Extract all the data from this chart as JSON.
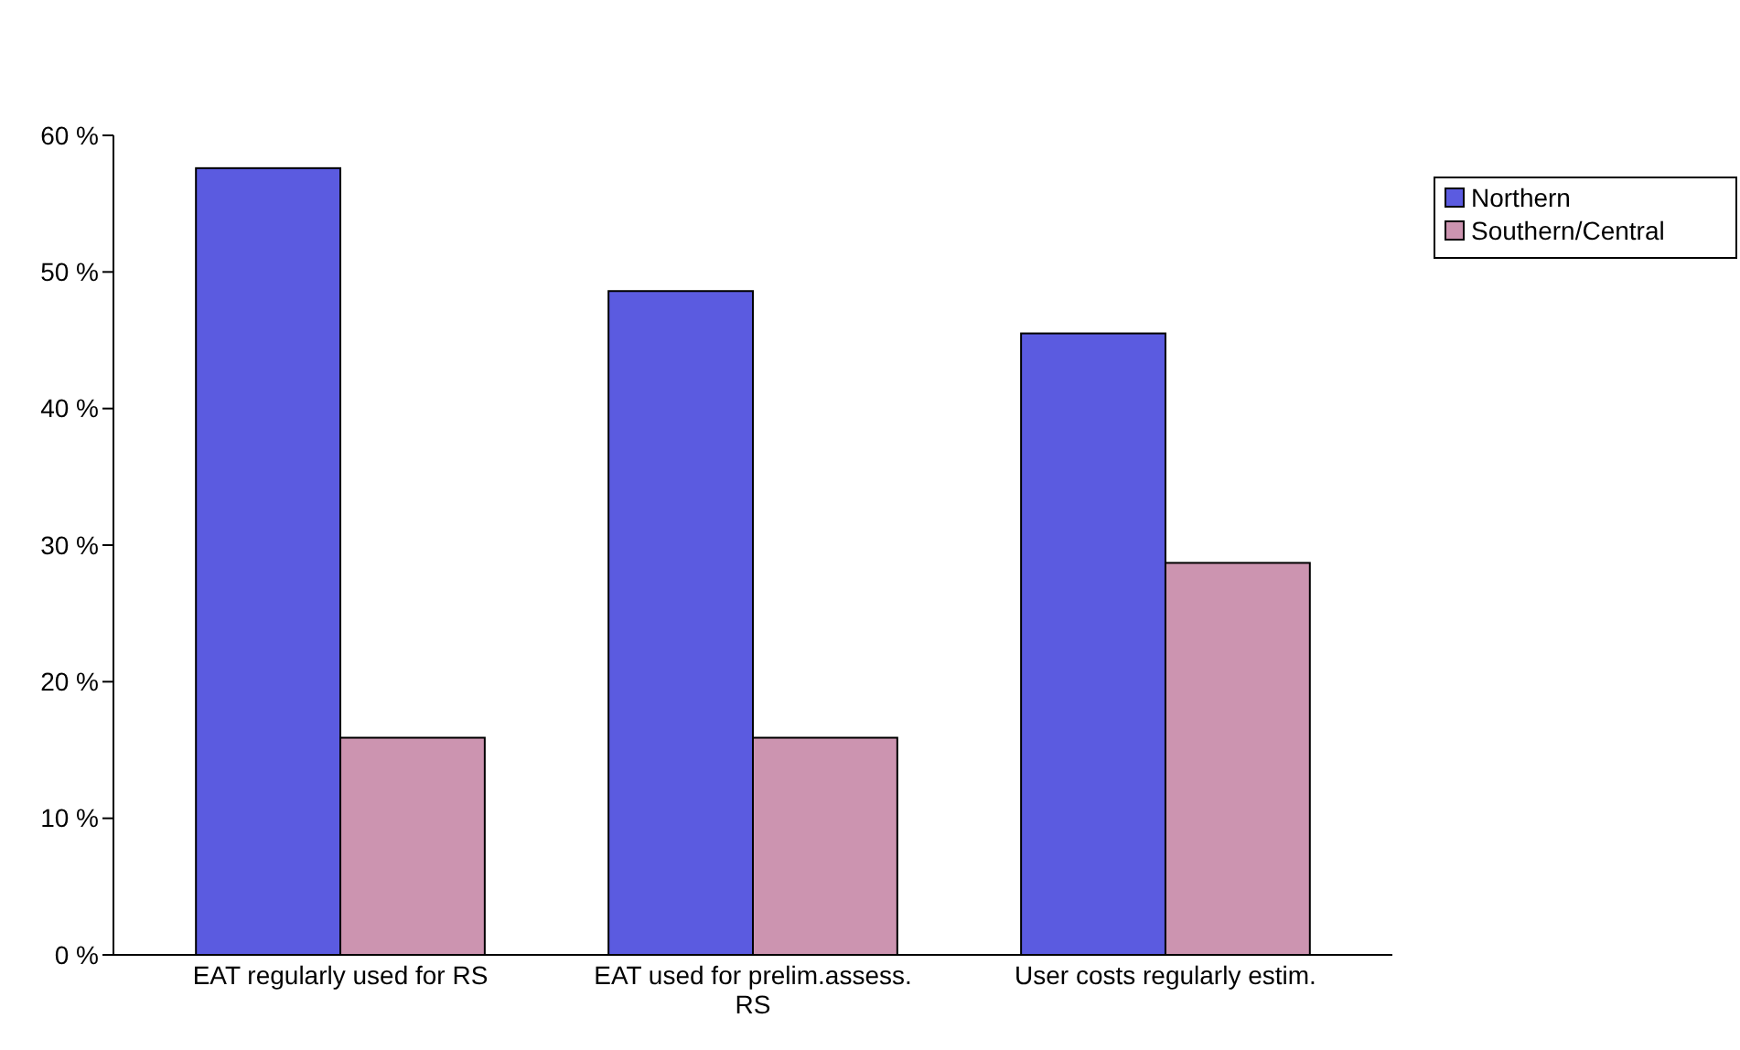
{
  "chart_data": {
    "type": "bar",
    "categories": [
      "EAT regularly used for RS",
      "EAT used for prelim.assess. RS",
      "User costs regularly estim."
    ],
    "series": [
      {
        "name": "Northern",
        "color": "#5b5be0",
        "values": [
          57.6,
          48.6,
          45.5
        ]
      },
      {
        "name": "Southern/Central",
        "color": "#cc94b0",
        "values": [
          15.9,
          15.9,
          28.7
        ]
      }
    ],
    "ylim": [
      0,
      60
    ],
    "yticks": [
      {
        "value": 0,
        "label": "0 %"
      },
      {
        "value": 10,
        "label": "10 %"
      },
      {
        "value": 20,
        "label": "20 %"
      },
      {
        "value": 30,
        "label": "30 %"
      },
      {
        "value": 40,
        "label": "40 %"
      },
      {
        "value": 50,
        "label": "50 %"
      },
      {
        "value": 60,
        "label": "60 %"
      }
    ],
    "legend": "top right"
  }
}
